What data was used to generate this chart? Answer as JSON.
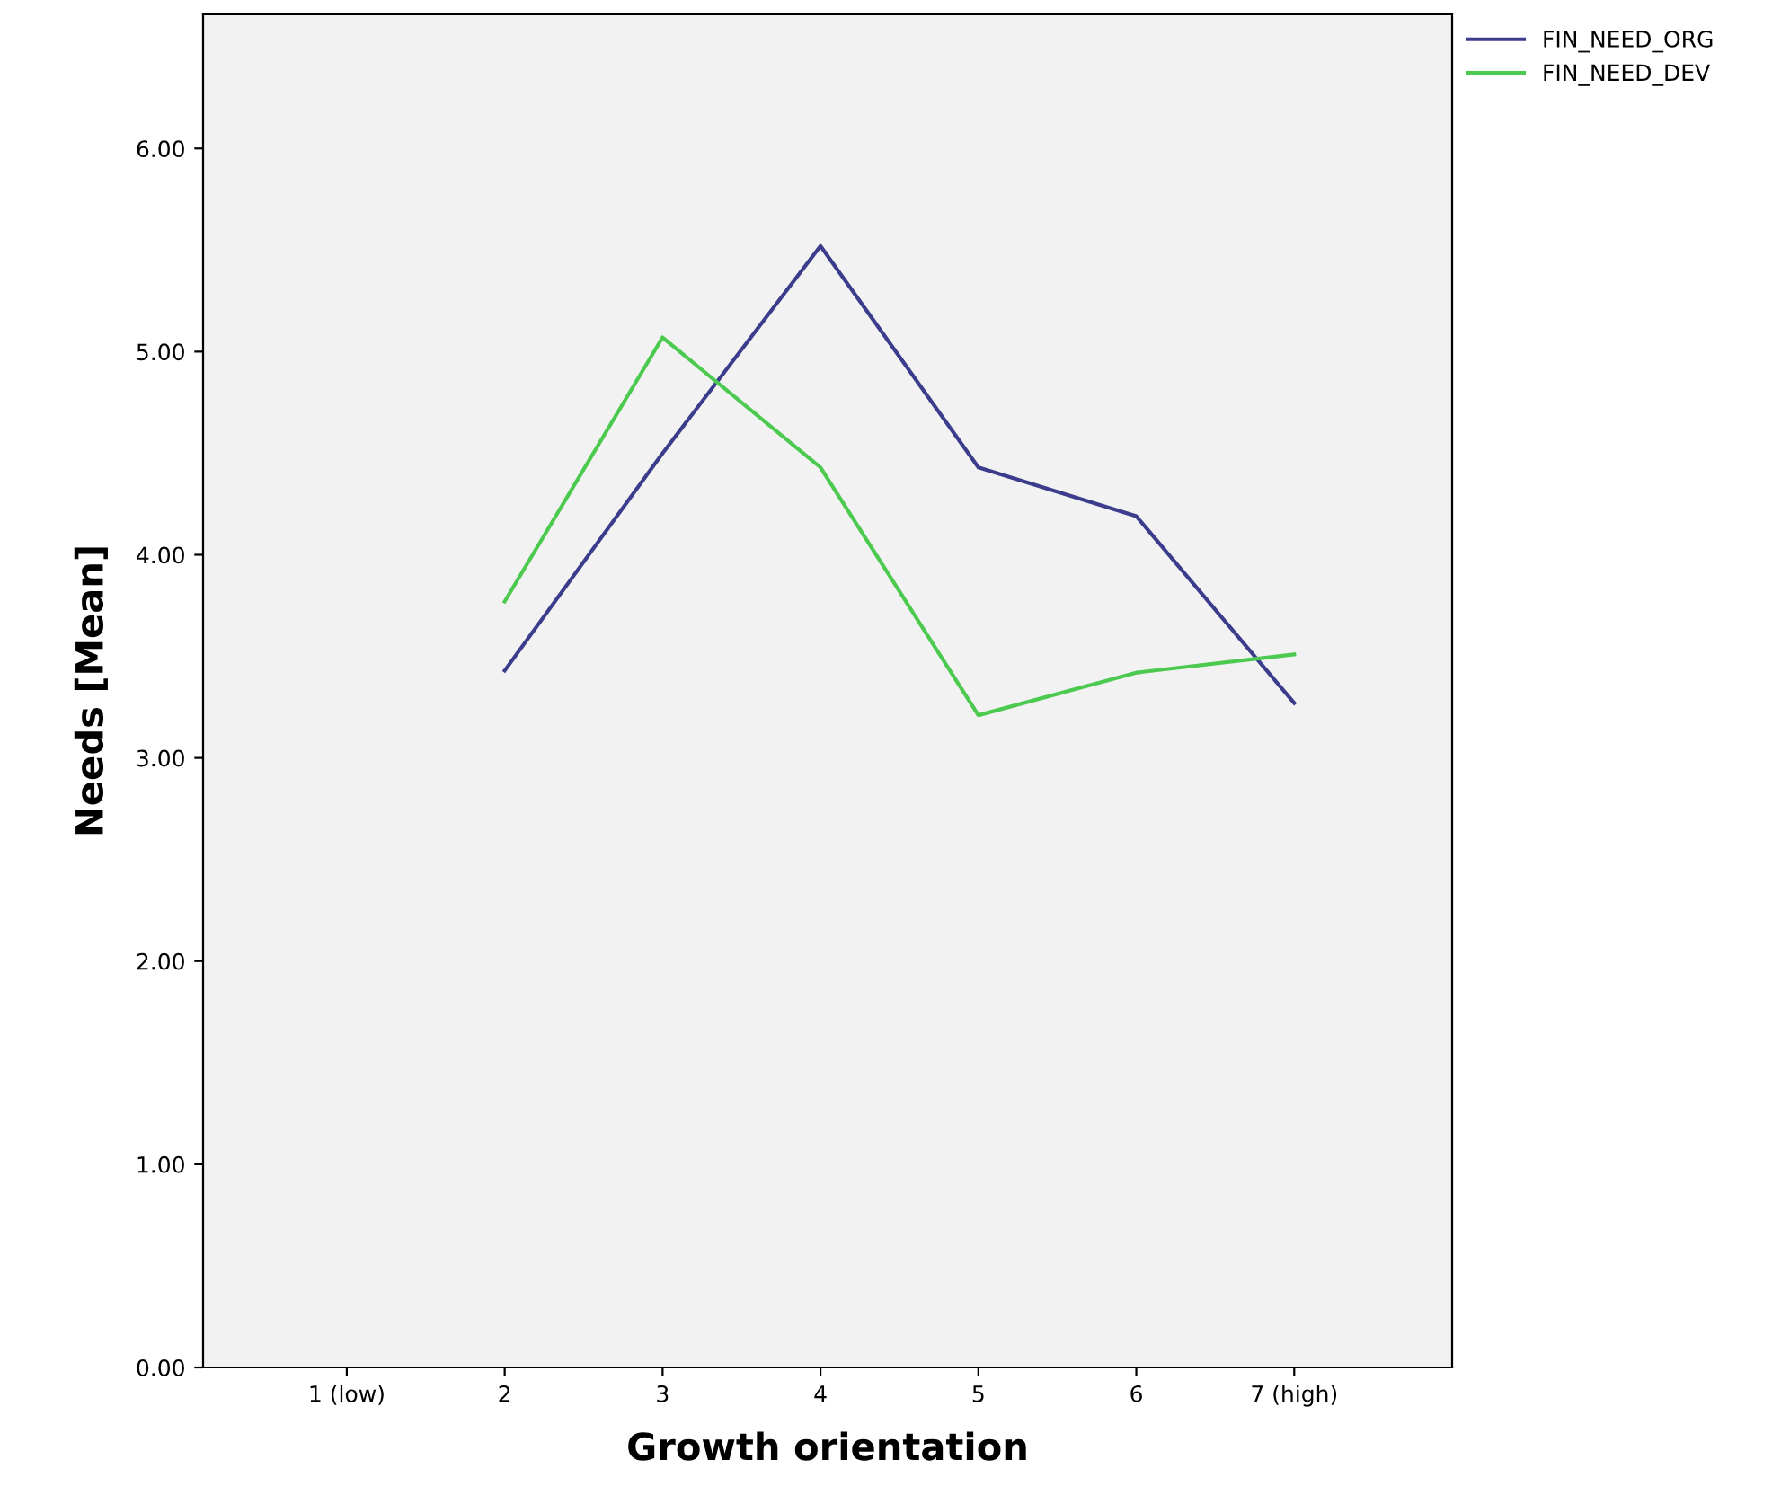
{
  "chart_data": {
    "type": "line",
    "xlabel": "Growth orientation",
    "ylabel": "Needs [Mean]",
    "categories": [
      "1 (low)",
      "2",
      "3",
      "4",
      "5",
      "6",
      "7 (high)"
    ],
    "series": [
      {
        "name": "FIN_NEED_ORG",
        "color": "#3c3c8c",
        "values": [
          null,
          3.43,
          4.5,
          5.52,
          4.43,
          4.19,
          3.27
        ]
      },
      {
        "name": "FIN_NEED_DEV",
        "color": "#4cc94f",
        "values": [
          null,
          3.77,
          5.07,
          4.43,
          3.21,
          3.42,
          3.51
        ]
      }
    ],
    "ylim": [
      0,
      6.66
    ],
    "yticks": [
      {
        "value": 0,
        "label": "0.00"
      },
      {
        "value": 1,
        "label": "1.00"
      },
      {
        "value": 2,
        "label": "2.00"
      },
      {
        "value": 3,
        "label": "3.00"
      },
      {
        "value": 4,
        "label": "4.00"
      },
      {
        "value": 5,
        "label": "5.00"
      },
      {
        "value": 6,
        "label": "6.00"
      }
    ],
    "grid": false,
    "legend": "top right",
    "marker": "none",
    "line_style": "solid"
  }
}
